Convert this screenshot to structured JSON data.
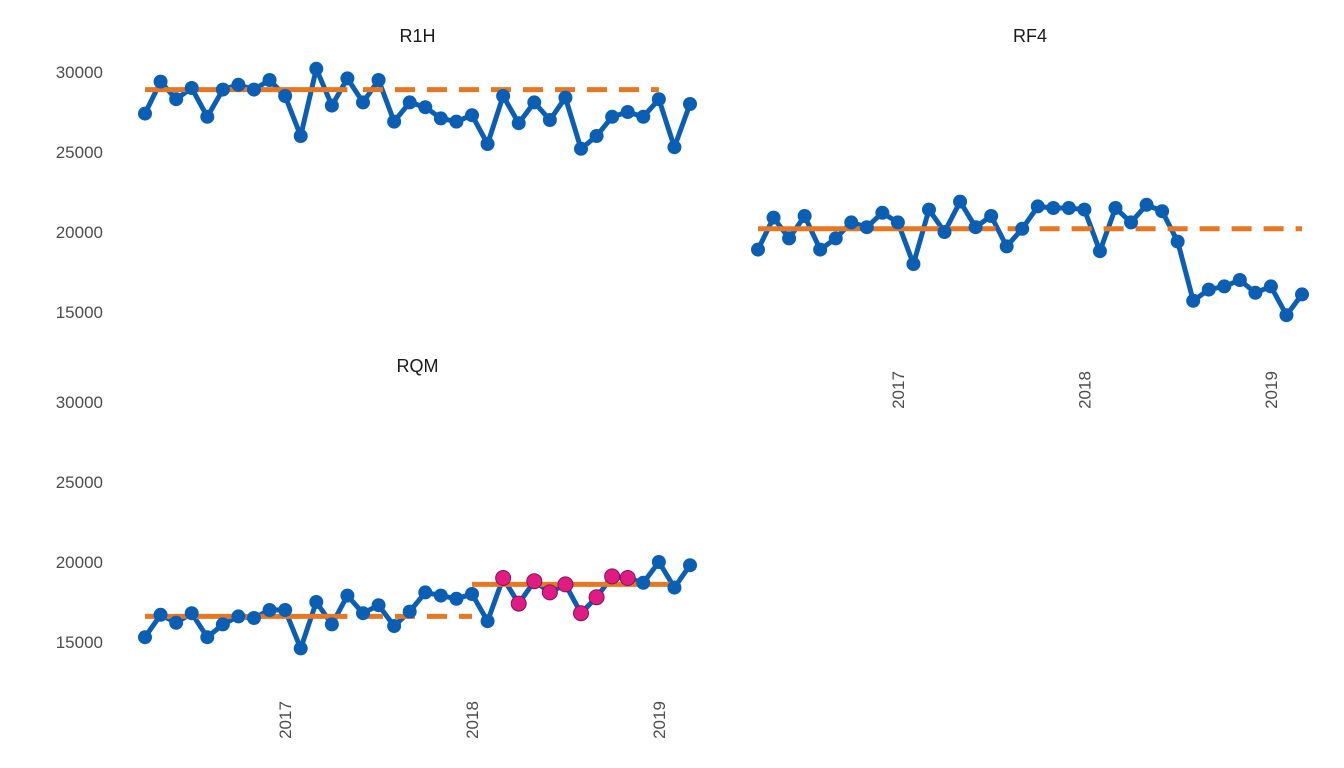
{
  "chart_data": {
    "type": "line",
    "facets": [
      "R1H",
      "RF4",
      "RQM"
    ],
    "y_ticks": [
      15000,
      20000,
      25000,
      30000
    ],
    "ylim": [
      13000,
      31500
    ],
    "x_ticks": [
      "2017",
      "2018",
      "2019"
    ],
    "x_labels": [
      "2016-04",
      "2016-05",
      "2016-06",
      "2016-07",
      "2016-08",
      "2016-09",
      "2016-10",
      "2016-11",
      "2016-12",
      "2017-01",
      "2017-02",
      "2017-03",
      "2017-04",
      "2017-05",
      "2017-06",
      "2017-07",
      "2017-08",
      "2017-09",
      "2017-10",
      "2017-11",
      "2017-12",
      "2018-01",
      "2018-02",
      "2018-03",
      "2018-04",
      "2018-05",
      "2018-06",
      "2018-07",
      "2018-08",
      "2018-09",
      "2018-10",
      "2018-11",
      "2018-12",
      "2019-01",
      "2019-02",
      "2019-03"
    ],
    "grid": false,
    "colors": {
      "line": "#0a5fb4",
      "centre_line": "#e87722",
      "special_cause": "#e01c84"
    },
    "panels": [
      {
        "name": "R1H",
        "values": [
          27400,
          29400,
          28300,
          29000,
          27200,
          28900,
          29200,
          28900,
          29500,
          28500,
          26000,
          30200,
          27900,
          29600,
          28100,
          29500,
          26900,
          28100,
          27800,
          27100,
          26900,
          27300,
          25500,
          28500,
          26800,
          28100,
          27000,
          28400,
          25200,
          26000,
          27200,
          27500,
          27200,
          28300,
          25300,
          28000
        ],
        "special": [],
        "centre_segments": [
          {
            "x_start": "2016-04",
            "x_end": "2017-05",
            "value": 28900,
            "style": "solid"
          },
          {
            "x_start": "2017-06",
            "x_end": "2019-01",
            "value": 28900,
            "style": "dashed"
          }
        ]
      },
      {
        "name": "RF4",
        "values": [
          18900,
          20900,
          19600,
          21000,
          18900,
          19600,
          20600,
          20300,
          21200,
          20600,
          18000,
          21400,
          20000,
          21900,
          20300,
          21000,
          19100,
          20200,
          21600,
          21500,
          21500,
          21400,
          18800,
          21500,
          20600,
          21700,
          21300,
          19400,
          15700,
          16400,
          16600,
          17000,
          16200,
          16600,
          14800,
          16100
        ],
        "special": [],
        "centre_segments": [
          {
            "x_start": "2016-04",
            "x_end": "2017-06",
            "value": 20200,
            "style": "solid"
          },
          {
            "x_start": "2017-06",
            "x_end": "2019-03",
            "value": 20200,
            "style": "dashed"
          }
        ]
      },
      {
        "name": "RQM",
        "values": [
          15300,
          16700,
          16200,
          16800,
          15300,
          16100,
          16600,
          16500,
          17000,
          17000,
          14600,
          17500,
          16100,
          17900,
          16800,
          17300,
          16000,
          16900,
          18100,
          17900,
          17700,
          18000,
          16300,
          19000,
          17400,
          18800,
          18100,
          18600,
          16800,
          17800,
          19100,
          19000,
          18700,
          20000,
          18400,
          19800
        ],
        "special": [
          23,
          24,
          25,
          26,
          27,
          28,
          29,
          30,
          31
        ],
        "centre_segments": [
          {
            "x_start": "2016-04",
            "x_end": "2017-05",
            "value": 16600,
            "style": "solid"
          },
          {
            "x_start": "2017-06",
            "x_end": "2018-01",
            "value": 16600,
            "style": "dashed"
          },
          {
            "x_start": "2018-01",
            "x_end": "2019-02",
            "value": 18600,
            "style": "solid"
          }
        ]
      }
    ]
  }
}
